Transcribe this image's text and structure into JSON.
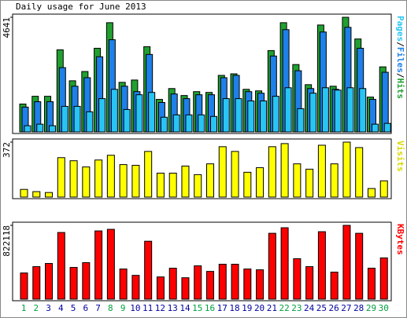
{
  "chart_data": {
    "type": "bar",
    "title": "Daily usage for June 2013",
    "categories": [
      "1",
      "2",
      "3",
      "4",
      "5",
      "6",
      "7",
      "8",
      "9",
      "10",
      "11",
      "12",
      "13",
      "14",
      "15",
      "16",
      "17",
      "18",
      "19",
      "20",
      "21",
      "22",
      "23",
      "24",
      "25",
      "26",
      "27",
      "28",
      "29",
      "30"
    ],
    "label_colors": [
      "#00a040",
      "#00a040",
      "#0000a0",
      "#0000a0",
      "#0000a0",
      "#0000a0",
      "#0000a0",
      "#00a040",
      "#00a040",
      "#0000a0",
      "#0000a0",
      "#0000a0",
      "#0000a0",
      "#0000a0",
      "#00a040",
      "#00a040",
      "#0000a0",
      "#0000a0",
      "#0000a0",
      "#0000a0",
      "#0000a0",
      "#00a040",
      "#00a040",
      "#0000a0",
      "#0000a0",
      "#0000a0",
      "#0000a0",
      "#0000a0",
      "#00a040",
      "#00a040"
    ],
    "legend_separator": "/",
    "panels": [
      {
        "ylim": [
          0,
          4641
        ],
        "yticks": [
          4641
        ],
        "series": [
          {
            "name": "Pages",
            "color": "#28c4f4",
            "values": [
              251,
              314,
              251,
              1035,
              1035,
              815,
              1348,
              1725,
              909,
              1505,
              1599,
              596,
              690,
              690,
              690,
              627,
              1348,
              1348,
              1254,
              1254,
              1443,
              1788,
              941,
              1568,
              1788,
              1693,
              1788,
              1756,
              314,
              345
            ]
          },
          {
            "name": "Files",
            "color": "#1e80e8",
            "values": [
              1004,
              1223,
              1223,
              2603,
              1850,
              2195,
              3042,
              3732,
              1850,
              1631,
              3136,
              1192,
              1537,
              1348,
              1505,
              1505,
              2195,
              2289,
              1631,
              1568,
              3073,
              4140,
              2477,
              1756,
              4045,
              1725,
              4234,
              3387,
              1317,
              2415
            ]
          },
          {
            "name": "Hits",
            "color": "#20a030",
            "values": [
              1129,
              1443,
              1443,
              3324,
              2070,
              2446,
              3387,
              4422,
              2007,
              2101,
              3450,
              1317,
              1756,
              1474,
              1631,
              1599,
              2289,
              2352,
              1725,
              1662,
              3293,
              4422,
              2728,
              1913,
              4328,
              1850,
              4641,
              3763,
              1411,
              2634
            ]
          }
        ]
      },
      {
        "ylim": [
          0,
          372
        ],
        "yticks": [
          372
        ],
        "series": [
          {
            "name": "Visits",
            "color": "#ffff00",
            "values": [
              52,
              37,
              31,
              267,
              246,
              204,
              251,
              283,
              220,
              215,
              309,
              162,
              162,
              210,
              152,
              225,
              341,
              309,
              168,
              199,
              341,
              362,
              225,
              189,
              351,
              225,
              372,
              335,
              58,
              110
            ]
          }
        ]
      },
      {
        "ylim": [
          0,
          822118
        ],
        "yticks": [
          822118
        ],
        "series": [
          {
            "name": "KBytes",
            "color": "#ff0000",
            "values": [
              291700,
              362400,
              397800,
              742600,
              353600,
              406600,
              760200,
              777900,
              335900,
              265200,
              645300,
              247500,
              344800,
              238700,
              371300,
              309400,
              389000,
              389000,
              335900,
              327100,
              733700,
              795600,
              450800,
              362400,
              751400,
              300600,
              822118,
              733700,
              344800,
              459700
            ]
          }
        ]
      }
    ]
  }
}
